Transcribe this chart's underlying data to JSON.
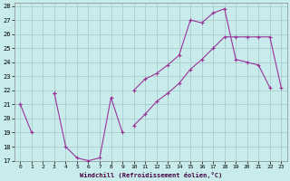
{
  "xlabel": "Windchill (Refroidissement éolien,°C)",
  "background_color": "#c8ecec",
  "line_color": "#993399",
  "grid_color": "#aacccc",
  "xlim": [
    -0.5,
    23.5
  ],
  "ylim": [
    17,
    28.2
  ],
  "xticks": [
    0,
    1,
    2,
    3,
    4,
    5,
    6,
    7,
    8,
    9,
    10,
    11,
    12,
    13,
    14,
    15,
    16,
    17,
    18,
    19,
    20,
    21,
    22,
    23
  ],
  "yticks": [
    17,
    18,
    19,
    20,
    21,
    22,
    23,
    24,
    25,
    26,
    27,
    28
  ],
  "x": [
    0,
    1,
    2,
    3,
    4,
    5,
    6,
    7,
    8,
    9,
    10,
    11,
    12,
    13,
    14,
    15,
    16,
    17,
    18,
    19,
    20,
    21,
    22,
    23
  ],
  "line1_y": [
    21.0,
    19.0,
    null,
    21.8,
    18.0,
    17.2,
    17.0,
    17.2,
    21.5,
    19.0,
    null,
    null,
    null,
    null,
    null,
    null,
    null,
    null,
    null,
    null,
    null,
    null,
    null,
    null
  ],
  "line2_y": [
    21.0,
    null,
    null,
    21.8,
    null,
    null,
    null,
    null,
    null,
    null,
    22.0,
    22.8,
    23.2,
    23.8,
    24.5,
    27.0,
    26.8,
    27.5,
    27.8,
    24.2,
    24.0,
    23.8,
    22.2,
    null
  ],
  "line3_y": [
    null,
    null,
    null,
    null,
    null,
    null,
    null,
    null,
    null,
    null,
    19.5,
    20.5,
    21.5,
    22.0,
    22.8,
    24.0,
    24.8,
    25.8,
    26.0,
    25.8,
    25.8,
    25.8,
    25.8,
    22.2
  ],
  "line4_y": [
    null,
    null,
    null,
    null,
    null,
    null,
    null,
    null,
    null,
    null,
    null,
    null,
    null,
    null,
    null,
    null,
    null,
    null,
    null,
    null,
    null,
    null,
    null,
    null
  ],
  "marker": "+"
}
